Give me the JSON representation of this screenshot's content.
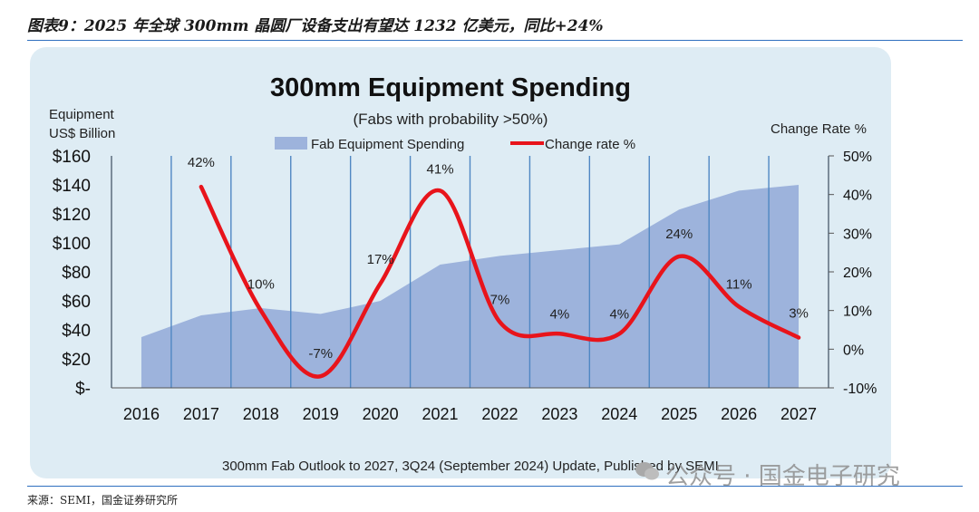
{
  "figure_caption": "图表9：2025 年全球 300mm 晶圆厂设备支出有望达 1232 亿美元，同比+24%",
  "source_note": "来源：SEMI，国金证券研究所",
  "footer_text": "300mm Fab Outlook to 2027, 3Q24 (September 2024) Update, Published by SEMI",
  "watermark_text": "公众号 · 国金电子研究",
  "colors": {
    "area": "#9db3dc",
    "line": "#e8141b",
    "grid": "#4f87c3",
    "panel": "#deecf4"
  },
  "chart_data": {
    "type": "area",
    "title": "300mm Equipment Spending",
    "subtitle": "(Fabs with probability >50%)",
    "left_axis_label": [
      "Equipment",
      "US$ Billion"
    ],
    "right_axis_label": "Change Rate %",
    "categories": [
      "2016",
      "2017",
      "2018",
      "2019",
      "2020",
      "2021",
      "2022",
      "2023",
      "2024",
      "2025",
      "2026",
      "2027"
    ],
    "y_ticks": [
      "$-",
      "$20",
      "$40",
      "$60",
      "$80",
      "$100",
      "$120",
      "$140",
      "$160"
    ],
    "ylim": [
      0,
      160
    ],
    "y2_ticks": [
      "-10%",
      "0%",
      "10%",
      "20%",
      "30%",
      "40%",
      "50%"
    ],
    "y2lim": [
      -10,
      50
    ],
    "legend": [
      "Fab Equipment Spending",
      "Change rate %"
    ],
    "legend_placement": "top-center",
    "grid": "vertical",
    "series": [
      {
        "name": "Fab Equipment Spending",
        "axis": "left",
        "kind": "area",
        "values": [
          35,
          50,
          55,
          51,
          60,
          85,
          91,
          95,
          99,
          123,
          136,
          140
        ]
      },
      {
        "name": "Change rate %",
        "axis": "right",
        "kind": "line",
        "x": [
          "2017",
          "2018",
          "2019",
          "2020",
          "2021",
          "2022",
          "2023",
          "2024",
          "2025",
          "2026",
          "2027"
        ],
        "values": [
          42,
          10,
          -7,
          17,
          41,
          7,
          4,
          4,
          24,
          11,
          3
        ],
        "labels": [
          "42%",
          "10%",
          "-7%",
          "17%",
          "41%",
          "7%",
          "4%",
          "4%",
          "24%",
          "11%",
          "3%"
        ]
      }
    ]
  }
}
